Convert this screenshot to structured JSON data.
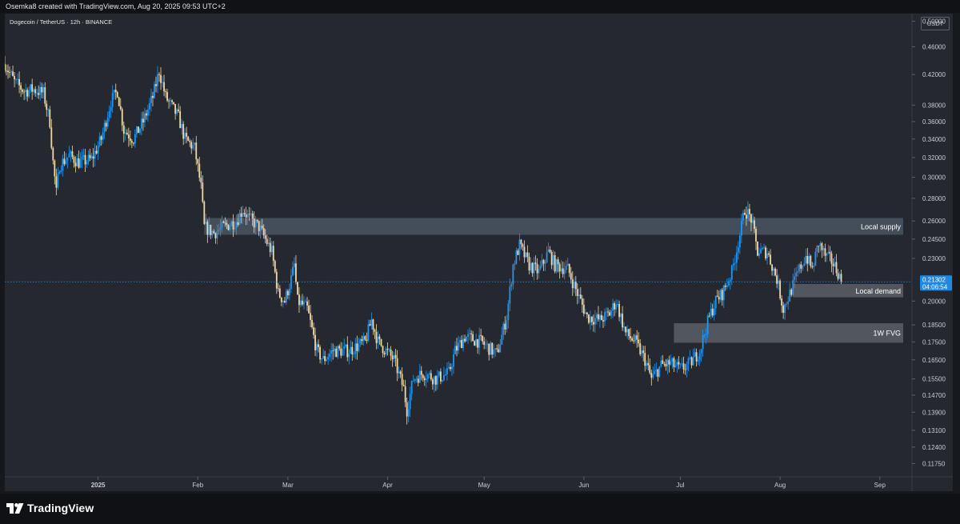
{
  "header": {
    "credit": "Osemka8 created with TradingView.com, Aug 20, 2025 09:53 UTC+2"
  },
  "chart_header": {
    "symbol": "Dogecoin / TetherUS · 12h · BINANCE",
    "currency": "USDT"
  },
  "footer": {
    "brand": "TradingView"
  },
  "colors": {
    "background": "#26282f",
    "candle_up": "#2196f3",
    "candle_down": "#f0d9a8",
    "zone_supply": "#4a5562",
    "zone_demand": "#5b5e66",
    "price_line": "#2f8fe0"
  },
  "chart_data": {
    "type": "candlestick",
    "title": "Dogecoin / TetherUS · 12h · BINANCE",
    "y_unit": "USDT",
    "y_scale": "log",
    "ylim": [
      0.1125,
      0.51
    ],
    "xlim": [
      "2024-12-03",
      "2025-09-11"
    ],
    "x_ticks": [
      {
        "date": "2025-01-01",
        "label": "2025"
      },
      {
        "date": "2025-02-01",
        "label": "Feb"
      },
      {
        "date": "2025-03-01",
        "label": "Mar"
      },
      {
        "date": "2025-04-01",
        "label": "Apr"
      },
      {
        "date": "2025-05-01",
        "label": "May"
      },
      {
        "date": "2025-06-01",
        "label": "Jun"
      },
      {
        "date": "2025-07-01",
        "label": "Jul"
      },
      {
        "date": "2025-08-01",
        "label": "Aug"
      },
      {
        "date": "2025-09-01",
        "label": "Sep"
      }
    ],
    "y_ticks": [
      "0.50000",
      "0.46000",
      "0.42000",
      "0.38000",
      "0.36000",
      "0.34000",
      "0.32000",
      "0.30000",
      "0.28000",
      "0.26000",
      "0.24500",
      "0.23000",
      "0.20000",
      "0.18500",
      "0.17500",
      "0.16500",
      "0.15500",
      "0.14700",
      "0.13900",
      "0.13100",
      "0.12400",
      "0.11750"
    ],
    "last_price": {
      "value": 0.21302,
      "label": "0.21302",
      "countdown": "04:06:54"
    },
    "price_path": [
      {
        "date": "2024-12-03",
        "price": 0.435
      },
      {
        "date": "2024-12-06",
        "price": 0.41
      },
      {
        "date": "2024-12-09",
        "price": 0.398
      },
      {
        "date": "2024-12-12",
        "price": 0.4
      },
      {
        "date": "2024-12-15",
        "price": 0.395
      },
      {
        "date": "2024-12-17",
        "price": 0.36
      },
      {
        "date": "2024-12-18",
        "price": 0.315
      },
      {
        "date": "2024-12-19",
        "price": 0.285
      },
      {
        "date": "2024-12-20",
        "price": 0.312
      },
      {
        "date": "2024-12-23",
        "price": 0.322
      },
      {
        "date": "2024-12-26",
        "price": 0.315
      },
      {
        "date": "2024-12-30",
        "price": 0.318
      },
      {
        "date": "2025-01-02",
        "price": 0.34
      },
      {
        "date": "2025-01-05",
        "price": 0.385
      },
      {
        "date": "2025-01-07",
        "price": 0.398
      },
      {
        "date": "2025-01-09",
        "price": 0.35
      },
      {
        "date": "2025-01-12",
        "price": 0.34
      },
      {
        "date": "2025-01-15",
        "price": 0.36
      },
      {
        "date": "2025-01-18",
        "price": 0.39
      },
      {
        "date": "2025-01-20",
        "price": 0.425
      },
      {
        "date": "2025-01-22",
        "price": 0.39
      },
      {
        "date": "2025-01-26",
        "price": 0.365
      },
      {
        "date": "2025-01-28",
        "price": 0.34
      },
      {
        "date": "2025-01-31",
        "price": 0.33
      },
      {
        "date": "2025-02-02",
        "price": 0.29
      },
      {
        "date": "2025-02-03",
        "price": 0.255
      },
      {
        "date": "2025-02-06",
        "price": 0.25
      },
      {
        "date": "2025-02-09",
        "price": 0.255
      },
      {
        "date": "2025-02-13",
        "price": 0.26
      },
      {
        "date": "2025-02-15",
        "price": 0.27
      },
      {
        "date": "2025-02-17",
        "price": 0.262
      },
      {
        "date": "2025-02-20",
        "price": 0.255
      },
      {
        "date": "2025-02-24",
        "price": 0.235
      },
      {
        "date": "2025-02-26",
        "price": 0.205
      },
      {
        "date": "2025-02-28",
        "price": 0.2
      },
      {
        "date": "2025-03-02",
        "price": 0.215
      },
      {
        "date": "2025-03-03",
        "price": 0.225
      },
      {
        "date": "2025-03-04",
        "price": 0.2
      },
      {
        "date": "2025-03-07",
        "price": 0.195
      },
      {
        "date": "2025-03-10",
        "price": 0.17
      },
      {
        "date": "2025-03-12",
        "price": 0.165
      },
      {
        "date": "2025-03-15",
        "price": 0.17
      },
      {
        "date": "2025-03-20",
        "price": 0.17
      },
      {
        "date": "2025-03-25",
        "price": 0.175
      },
      {
        "date": "2025-03-27",
        "price": 0.188
      },
      {
        "date": "2025-03-29",
        "price": 0.175
      },
      {
        "date": "2025-04-03",
        "price": 0.165
      },
      {
        "date": "2025-04-06",
        "price": 0.15
      },
      {
        "date": "2025-04-07",
        "price": 0.14
      },
      {
        "date": "2025-04-09",
        "price": 0.155
      },
      {
        "date": "2025-04-12",
        "price": 0.158
      },
      {
        "date": "2025-04-16",
        "price": 0.155
      },
      {
        "date": "2025-04-20",
        "price": 0.158
      },
      {
        "date": "2025-04-22",
        "price": 0.17
      },
      {
        "date": "2025-04-25",
        "price": 0.178
      },
      {
        "date": "2025-04-30",
        "price": 0.175
      },
      {
        "date": "2025-05-05",
        "price": 0.168
      },
      {
        "date": "2025-05-08",
        "price": 0.19
      },
      {
        "date": "2025-05-10",
        "price": 0.225
      },
      {
        "date": "2025-05-12",
        "price": 0.24
      },
      {
        "date": "2025-05-15",
        "price": 0.225
      },
      {
        "date": "2025-05-18",
        "price": 0.22
      },
      {
        "date": "2025-05-21",
        "price": 0.235
      },
      {
        "date": "2025-05-23",
        "price": 0.225
      },
      {
        "date": "2025-05-27",
        "price": 0.222
      },
      {
        "date": "2025-05-30",
        "price": 0.205
      },
      {
        "date": "2025-06-02",
        "price": 0.19
      },
      {
        "date": "2025-06-06",
        "price": 0.188
      },
      {
        "date": "2025-06-09",
        "price": 0.192
      },
      {
        "date": "2025-06-11",
        "price": 0.2
      },
      {
        "date": "2025-06-14",
        "price": 0.18
      },
      {
        "date": "2025-06-17",
        "price": 0.175
      },
      {
        "date": "2025-06-20",
        "price": 0.165
      },
      {
        "date": "2025-06-22",
        "price": 0.155
      },
      {
        "date": "2025-06-25",
        "price": 0.162
      },
      {
        "date": "2025-06-28",
        "price": 0.163
      },
      {
        "date": "2025-07-01",
        "price": 0.16
      },
      {
        "date": "2025-07-04",
        "price": 0.163
      },
      {
        "date": "2025-07-07",
        "price": 0.17
      },
      {
        "date": "2025-07-10",
        "price": 0.19
      },
      {
        "date": "2025-07-12",
        "price": 0.2
      },
      {
        "date": "2025-07-14",
        "price": 0.205
      },
      {
        "date": "2025-07-17",
        "price": 0.22
      },
      {
        "date": "2025-07-20",
        "price": 0.255
      },
      {
        "date": "2025-07-21",
        "price": 0.27
      },
      {
        "date": "2025-07-23",
        "price": 0.262
      },
      {
        "date": "2025-07-25",
        "price": 0.235
      },
      {
        "date": "2025-07-28",
        "price": 0.235
      },
      {
        "date": "2025-07-31",
        "price": 0.215
      },
      {
        "date": "2025-08-02",
        "price": 0.195
      },
      {
        "date": "2025-08-04",
        "price": 0.205
      },
      {
        "date": "2025-08-07",
        "price": 0.222
      },
      {
        "date": "2025-08-09",
        "price": 0.232
      },
      {
        "date": "2025-08-11",
        "price": 0.222
      },
      {
        "date": "2025-08-13",
        "price": 0.242
      },
      {
        "date": "2025-08-15",
        "price": 0.232
      },
      {
        "date": "2025-08-17",
        "price": 0.228
      },
      {
        "date": "2025-08-19",
        "price": 0.22
      },
      {
        "date": "2025-08-20",
        "price": 0.213
      }
    ],
    "annotations": [
      {
        "label": "Local supply",
        "start": "2025-02-03",
        "end": "2025-09-11",
        "price_low": 0.2485,
        "price_high": 0.2625
      },
      {
        "label": "Local demand",
        "start": "2025-08-05",
        "end": "2025-09-11",
        "price_low": 0.2025,
        "price_high": 0.2115
      },
      {
        "label": "1W FVG",
        "start": "2025-06-29",
        "end": "2025-09-11",
        "price_low": 0.1745,
        "price_high": 0.186
      }
    ]
  }
}
